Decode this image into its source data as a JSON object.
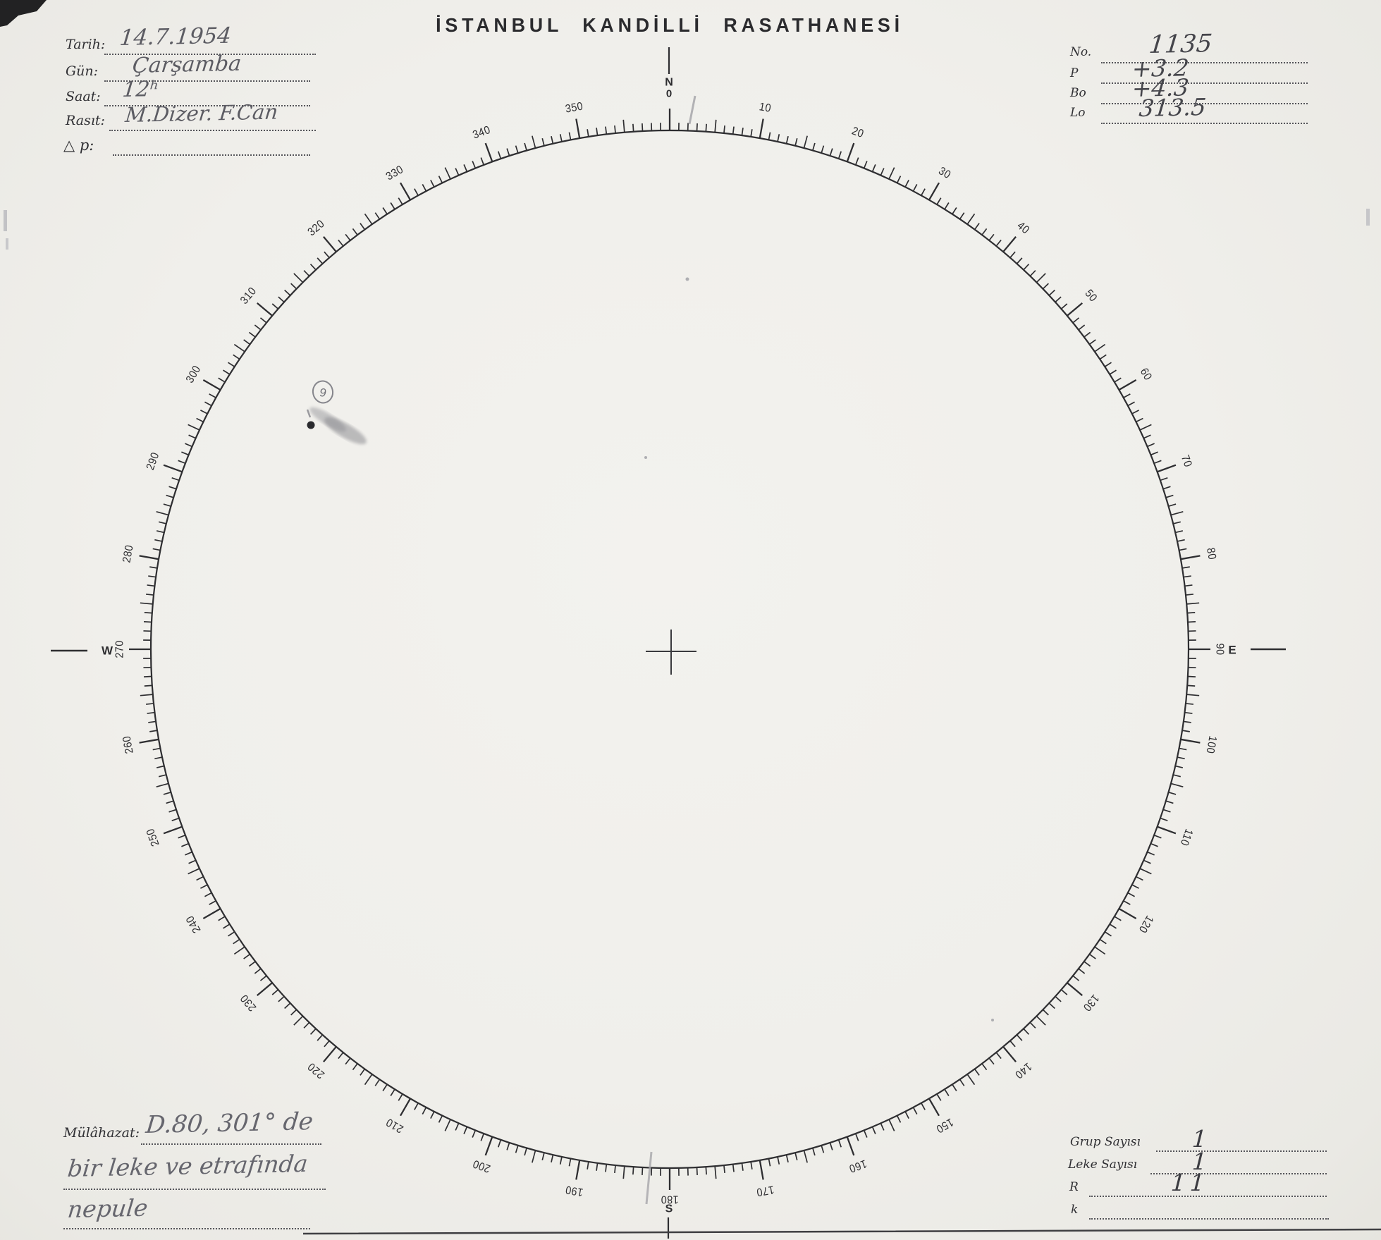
{
  "title": "İSTANBUL KANDİLLİ RASATHANESİ",
  "form_left": [
    {
      "label": "Tarih:",
      "value": "14.7.1954"
    },
    {
      "label": "Gün:",
      "value": "Çarşamba"
    },
    {
      "label": "Saat:",
      "value": "12ʰ"
    },
    {
      "label": "Rasıt:",
      "value": "M.Dizer. F.Can"
    },
    {
      "label": "△ p:",
      "value": ""
    }
  ],
  "form_right": [
    {
      "label": "No.",
      "value": "1135"
    },
    {
      "label": "P",
      "value": "+3.2"
    },
    {
      "label": "Bo",
      "value": "+4.3"
    },
    {
      "label": "Lo",
      "value": "313.5"
    }
  ],
  "remarks": {
    "label": "Mülâhazat:",
    "line1": "D.80, 301° de",
    "line2": "bir leke ve etrafında",
    "line3": "nepule"
  },
  "stats": [
    {
      "label": "Grup Sayısı",
      "value": "1"
    },
    {
      "label": "Leke Sayısı",
      "value": "1"
    },
    {
      "label": "R",
      "value": "11"
    },
    {
      "label": "k",
      "value": ""
    }
  ],
  "dial": {
    "cardinals": {
      "north": "N",
      "east": "E",
      "south": "S",
      "west": "W"
    },
    "zero_label": "0",
    "degree_labels": [
      "10",
      "20",
      "30",
      "40",
      "50",
      "60",
      "70",
      "80",
      "90",
      "100",
      "110",
      "120",
      "130",
      "140",
      "150",
      "160",
      "170",
      "180",
      "190",
      "200",
      "210",
      "220",
      "230",
      "240",
      "250",
      "260",
      "270",
      "280",
      "290",
      "300",
      "310",
      "320",
      "330",
      "340",
      "350"
    ],
    "sunspot": {
      "group_mark": "9"
    },
    "ink_color": "#2e2e31",
    "pencil_color": "#a7a7ab"
  }
}
